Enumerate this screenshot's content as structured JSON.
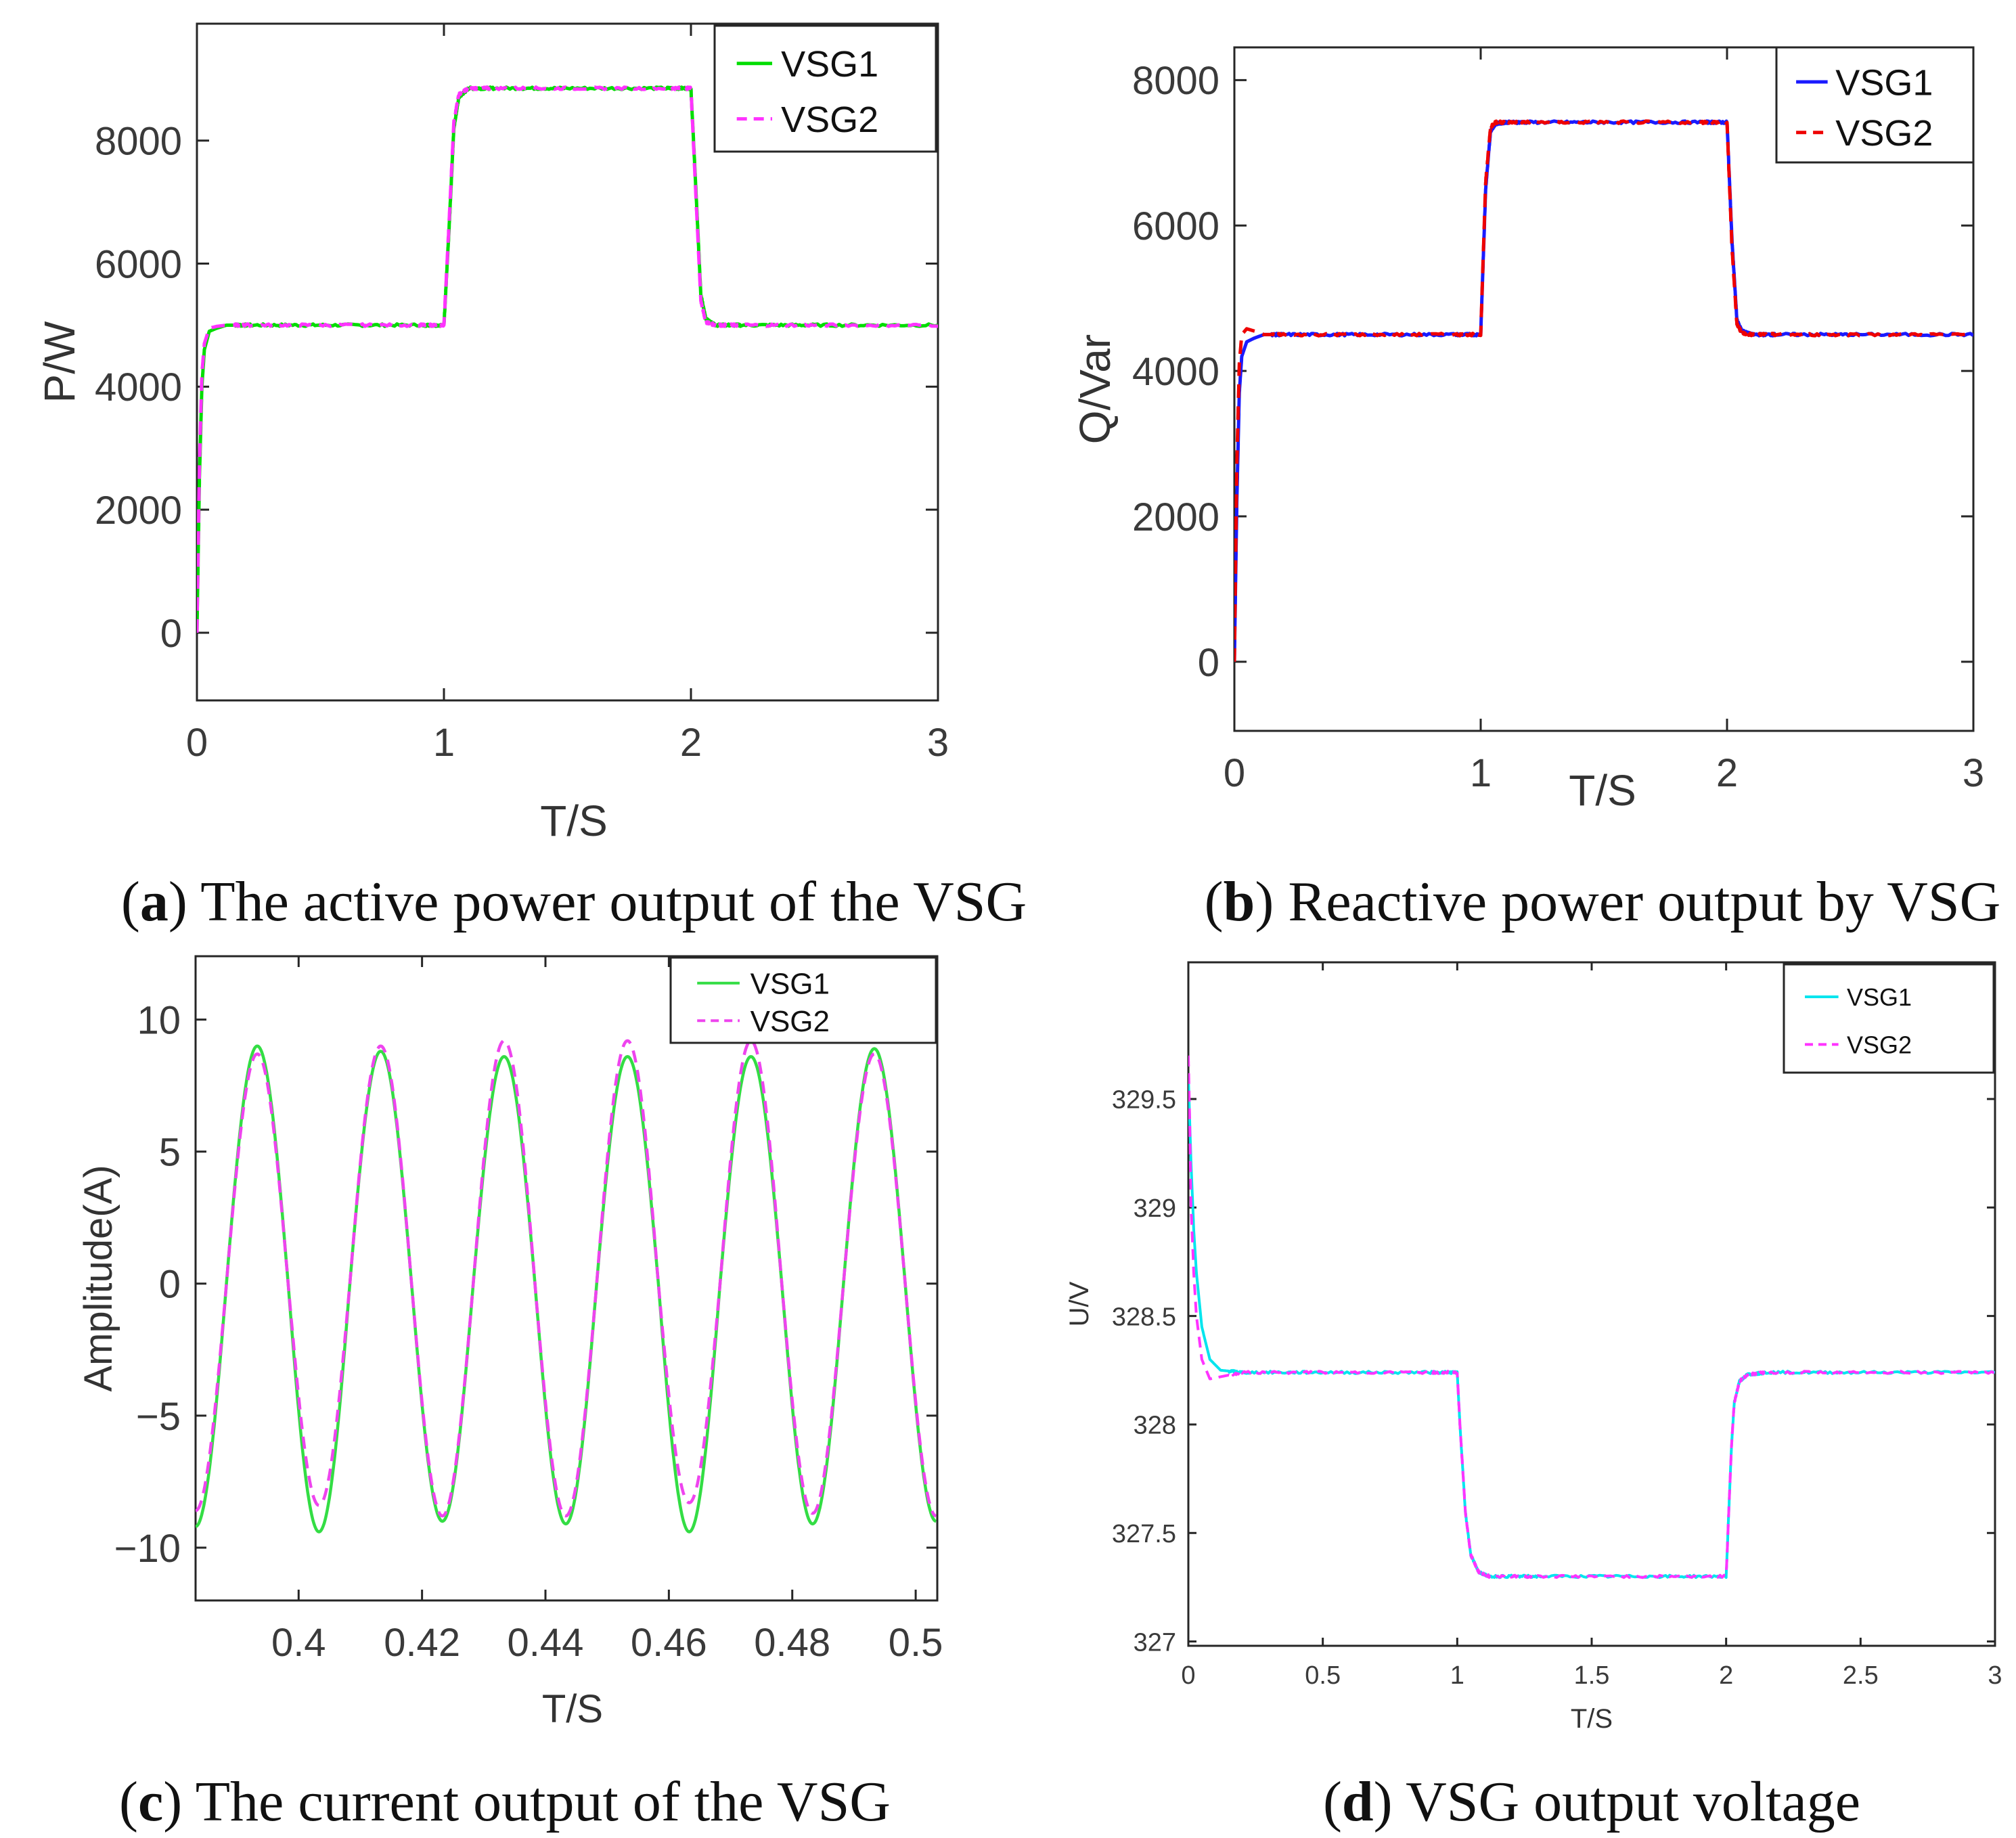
{
  "chart_data": [
    {
      "id": "a",
      "type": "line",
      "xlabel": "T/S",
      "ylabel": "P/W",
      "xlim": [
        0,
        3
      ],
      "ylim": [
        -1100,
        9900
      ],
      "xticks": [
        0,
        1,
        2,
        3
      ],
      "yticks": [
        0,
        2000,
        4000,
        6000,
        8000
      ],
      "xtick_labels": [
        "0",
        "1",
        "2",
        "3"
      ],
      "ytick_labels": [
        "0",
        "2000",
        "4000",
        "6000",
        "8000"
      ],
      "legend_position": "top-right",
      "caption": {
        "letter": "a",
        "text": "The active power output of the VSG"
      },
      "series": [
        {
          "name": "VSG1",
          "color": "#00dd00",
          "dash": "solid",
          "x": [
            0,
            0.01,
            0.02,
            0.03,
            0.05,
            0.08,
            0.12,
            0.2,
            0.5,
            0.9,
            1.0,
            1.02,
            1.04,
            1.06,
            1.1,
            1.2,
            1.5,
            1.9,
            2.0,
            2.02,
            2.04,
            2.06,
            2.1,
            2.2,
            2.5,
            3.0
          ],
          "y": [
            0,
            2500,
            4000,
            4600,
            4900,
            4950,
            5000,
            5000,
            5000,
            5000,
            5000,
            6500,
            8200,
            8700,
            8850,
            8850,
            8850,
            8850,
            8850,
            7200,
            5500,
            5100,
            5000,
            5000,
            5000,
            5000
          ]
        },
        {
          "name": "VSG2",
          "color": "#ff33ff",
          "dash": "dashed",
          "x": [
            0,
            0.01,
            0.02,
            0.03,
            0.05,
            0.08,
            0.12,
            0.2,
            0.5,
            0.9,
            1.0,
            1.02,
            1.04,
            1.06,
            1.1,
            1.2,
            1.5,
            1.9,
            2.0,
            2.02,
            2.04,
            2.06,
            2.1,
            2.2,
            2.5,
            3.0
          ],
          "y": [
            0,
            2700,
            4200,
            4700,
            4950,
            4980,
            5000,
            5000,
            5000,
            5000,
            5000,
            6600,
            8300,
            8750,
            8850,
            8850,
            8850,
            8850,
            8850,
            7100,
            5400,
            5050,
            5000,
            5000,
            5000,
            5000
          ]
        }
      ]
    },
    {
      "id": "b",
      "type": "line",
      "xlabel": "T/S",
      "ylabel": "Q/Var",
      "xlim": [
        0,
        3
      ],
      "ylim": [
        -950,
        8450
      ],
      "xticks": [
        0,
        1,
        2,
        3
      ],
      "yticks": [
        0,
        2000,
        4000,
        6000,
        8000
      ],
      "xtick_labels": [
        "0",
        "1",
        "2",
        "3"
      ],
      "ytick_labels": [
        "0",
        "2000",
        "4000",
        "6000",
        "8000"
      ],
      "legend_position": "top-right",
      "caption": {
        "letter": "b",
        "text": "Reactive power output by VSG"
      },
      "series": [
        {
          "name": "VSG1",
          "color": "#1a1aff",
          "dash": "solid",
          "x": [
            0,
            0.01,
            0.02,
            0.03,
            0.05,
            0.08,
            0.12,
            0.2,
            0.5,
            0.9,
            1.0,
            1.02,
            1.04,
            1.06,
            1.1,
            1.2,
            1.5,
            1.9,
            2.0,
            2.02,
            2.04,
            2.06,
            2.1,
            2.2,
            2.5,
            3.0
          ],
          "y": [
            0,
            2200,
            3700,
            4200,
            4400,
            4450,
            4500,
            4500,
            4500,
            4500,
            4500,
            6500,
            7300,
            7400,
            7420,
            7420,
            7420,
            7420,
            7420,
            5800,
            4700,
            4550,
            4500,
            4500,
            4500,
            4500
          ]
        },
        {
          "name": "VSG2",
          "color": "#ee0000",
          "dash": "dashed",
          "x": [
            0,
            0.01,
            0.02,
            0.03,
            0.05,
            0.08,
            0.12,
            0.2,
            0.5,
            0.9,
            1.0,
            1.02,
            1.04,
            1.06,
            1.1,
            1.2,
            1.5,
            1.9,
            2.0,
            2.02,
            2.04,
            2.06,
            2.1,
            2.2,
            2.5,
            3.0
          ],
          "y": [
            0,
            2700,
            4100,
            4500,
            4580,
            4550,
            4500,
            4500,
            4500,
            4500,
            4500,
            6600,
            7350,
            7420,
            7420,
            7420,
            7420,
            7420,
            7420,
            5700,
            4650,
            4520,
            4500,
            4500,
            4500,
            4500
          ]
        }
      ]
    },
    {
      "id": "c",
      "type": "line",
      "xlabel": "T/S",
      "ylabel": "Amplitude(A)",
      "xlim": [
        0.3833,
        0.5035
      ],
      "ylim": [
        -12,
        12.4
      ],
      "xticks": [
        0.4,
        0.42,
        0.44,
        0.46,
        0.48,
        0.5
      ],
      "yticks": [
        -10,
        -5,
        0,
        5,
        10
      ],
      "xtick_labels": [
        "0.4",
        "0.42",
        "0.44",
        "0.46",
        "0.48",
        "0.5"
      ],
      "ytick_labels": [
        "−10",
        "−5",
        "0",
        "5",
        "10"
      ],
      "legend_position": "top-right",
      "caption": {
        "letter": "c",
        "text": "The current output of the VSG"
      },
      "series": [
        {
          "name": "VSG1",
          "color": "#33dd44",
          "dash": "solid",
          "x": [
            0.3833,
            0.3883,
            0.3933,
            0.3983,
            0.4033,
            0.4083,
            0.4133,
            0.4183,
            0.4233,
            0.4283,
            0.4333,
            0.4383,
            0.4433,
            0.4483,
            0.4533,
            0.4583,
            0.4633,
            0.4683,
            0.4733,
            0.4783,
            0.4833,
            0.4883,
            0.4933,
            0.4983,
            0.5033
          ],
          "y": [
            -9.2,
            0,
            9.0,
            0,
            -9.4,
            0,
            8.8,
            0,
            -9.0,
            0,
            8.6,
            0,
            -9.1,
            0,
            8.6,
            0,
            -9.4,
            0,
            8.6,
            0,
            -9.1,
            0,
            8.9,
            0,
            -9.0
          ]
        },
        {
          "name": "VSG2",
          "color": "#ee44ee",
          "dash": "dashed",
          "x": [
            0.3833,
            0.3883,
            0.3933,
            0.3983,
            0.4033,
            0.4083,
            0.4133,
            0.4183,
            0.4233,
            0.4283,
            0.4333,
            0.4383,
            0.4433,
            0.4483,
            0.4533,
            0.4583,
            0.4633,
            0.4683,
            0.4733,
            0.4783,
            0.4833,
            0.4883,
            0.4933,
            0.4983,
            0.5033
          ],
          "y": [
            -8.6,
            0,
            8.7,
            0,
            -8.4,
            0,
            9.0,
            0,
            -8.8,
            0,
            9.2,
            0,
            -8.8,
            0,
            9.2,
            0,
            -8.3,
            0,
            9.2,
            0,
            -8.7,
            0,
            8.7,
            0,
            -8.8
          ]
        }
      ]
    },
    {
      "id": "d",
      "type": "line",
      "xlabel": "T/S",
      "ylabel": "U/V",
      "xlim": [
        0,
        3
      ],
      "ylim": [
        326.98,
        330.13
      ],
      "xticks": [
        0,
        0.5,
        1,
        1.5,
        2,
        2.5,
        3
      ],
      "yticks": [
        327,
        327.5,
        328,
        328.5,
        329,
        329.5
      ],
      "xtick_labels": [
        "0",
        "0.5",
        "1",
        "1.5",
        "2",
        "2.5",
        "3"
      ],
      "ytick_labels": [
        "327",
        "327.5",
        "328",
        "328.5",
        "329",
        "329.5"
      ],
      "legend_position": "top-right",
      "caption": {
        "letter": "d",
        "text": "VSG output voltage"
      },
      "series": [
        {
          "name": "VSG1",
          "color": "#00e5ee",
          "dash": "solid",
          "x": [
            0,
            0.01,
            0.02,
            0.03,
            0.05,
            0.08,
            0.12,
            0.2,
            0.5,
            0.9,
            1.0,
            1.01,
            1.03,
            1.05,
            1.08,
            1.12,
            1.3,
            1.7,
            2.0,
            2.01,
            2.02,
            2.03,
            2.05,
            2.08,
            2.15,
            2.5,
            3.0
          ],
          "y": [
            329.6,
            329.2,
            328.9,
            328.7,
            328.45,
            328.3,
            328.25,
            328.24,
            328.24,
            328.24,
            328.24,
            328.0,
            327.6,
            327.4,
            327.32,
            327.3,
            327.3,
            327.3,
            327.3,
            327.6,
            327.9,
            328.1,
            328.2,
            328.23,
            328.24,
            328.24,
            328.24
          ]
        },
        {
          "name": "VSG2",
          "color": "#ff33ff",
          "dash": "dashed",
          "x": [
            0,
            0.005,
            0.01,
            0.02,
            0.03,
            0.05,
            0.08,
            0.12,
            0.2,
            0.5,
            0.9,
            1.0,
            1.01,
            1.03,
            1.05,
            1.08,
            1.12,
            1.3,
            1.7,
            2.0,
            2.01,
            2.02,
            2.03,
            2.05,
            2.08,
            2.15,
            2.5,
            3.0
          ],
          "y": [
            329.7,
            329.4,
            329.0,
            328.7,
            328.5,
            328.3,
            328.21,
            328.22,
            328.24,
            328.24,
            328.24,
            328.24,
            328.0,
            327.6,
            327.4,
            327.32,
            327.3,
            327.3,
            327.3,
            327.3,
            327.6,
            327.9,
            328.1,
            328.2,
            328.23,
            328.24,
            328.24,
            328.24
          ]
        }
      ]
    }
  ]
}
